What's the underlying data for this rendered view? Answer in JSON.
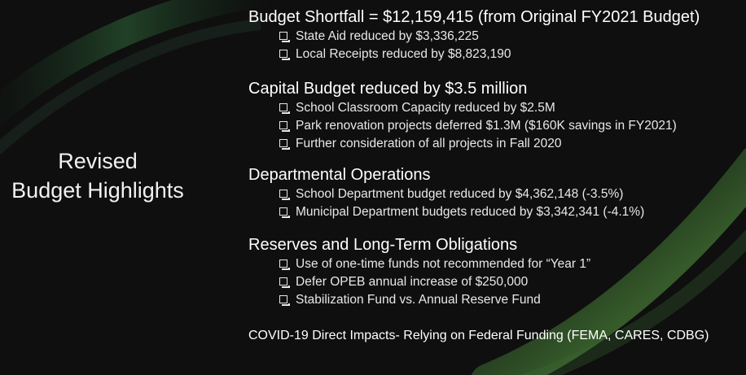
{
  "slide": {
    "side_title_line1": "Revised",
    "side_title_line2": "Budget Highlights",
    "colors": {
      "background": "#0f0f0f",
      "text": "#ffffff",
      "accent_green": "#4a8a3a"
    }
  },
  "sections": [
    {
      "heading": "Budget Shortfall = $12,159,415 (from Original FY2021 Budget)",
      "items": [
        "State Aid reduced by $3,336,225",
        "Local Receipts reduced by $8,823,190"
      ]
    },
    {
      "heading": "Capital Budget reduced by $3.5 million",
      "items": [
        "School Classroom Capacity reduced by $2.5M",
        "Park renovation projects deferred $1.3M ($160K savings in FY2021)",
        "Further consideration of all projects in Fall 2020"
      ]
    },
    {
      "heading": "Departmental Operations",
      "items": [
        "School Department budget reduced by $4,362,148 (-3.5%)",
        "Municipal Department budgets reduced by $3,342,341 (-4.1%)"
      ]
    },
    {
      "heading": "Reserves and Long-Term Obligations",
      "items": [
        "Use of one-time funds not recommended for “Year 1”",
        "Defer OPEB annual increase of $250,000",
        "Stabilization Fund vs. Annual Reserve Fund"
      ]
    },
    {
      "heading": "COVID-19 Direct Impacts- Relying on Federal Funding (FEMA, CARES, CDBG)",
      "items": []
    }
  ]
}
